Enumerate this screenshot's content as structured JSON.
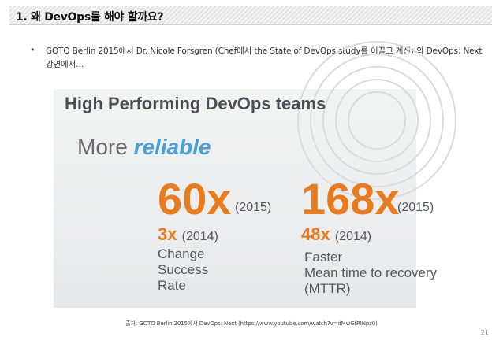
{
  "header": {
    "title": "1. 왜 DevOps를 해야 할까요?"
  },
  "bullet": {
    "marker": "•",
    "text": "GOTO Berlin 2015에서 Dr. Nicole Forsgren (Chef에서 the State of DevOps study를 이끌고 계신) 의 DevOps: Next 강연에서…"
  },
  "slide": {
    "heading": "High Performing DevOps teams",
    "subhead_prefix": "More ",
    "subhead_accent": "reliable",
    "left": {
      "big_value": "60x",
      "big_year": "(2015)",
      "prev_value": "3x",
      "prev_year": "(2014)",
      "metric_lines": [
        "Change",
        "Success",
        "Rate"
      ]
    },
    "right": {
      "big_value": "168x",
      "big_year": "(2015)",
      "prev_value": "48x",
      "prev_year": "(2014)",
      "metric_lines": [
        "Faster",
        "Mean time to recovery",
        "(MTTR)"
      ]
    },
    "colors": {
      "accent_orange": "#e87b1e",
      "accent_blue": "#4a9fd4",
      "heading_gray": "#4a4f57"
    }
  },
  "caption": "출처: GOTO Berlin 2015에서 DevOps: Next (https://www.youtube.com/watch?v=dMwGfRINpz0)",
  "page_number": "21"
}
